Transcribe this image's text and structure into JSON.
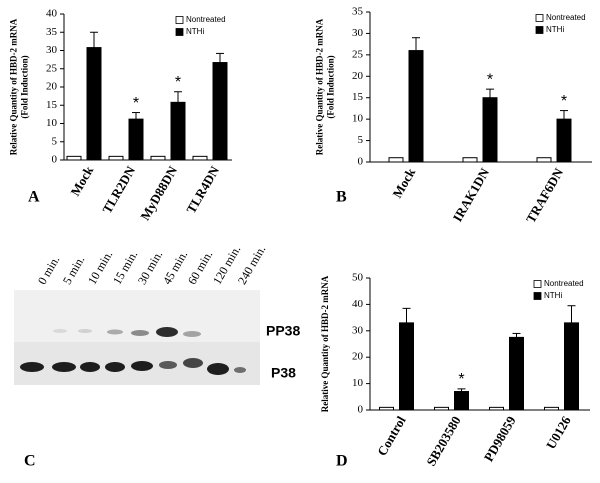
{
  "chart_data": [
    {
      "type": "bar",
      "panel": "A",
      "ylabel": [
        "Relative Quantity of HBD-2 mRNA",
        "(Fold Induction)"
      ],
      "categories": [
        "Mock",
        "TLR2DN",
        "MyD88DN",
        "TLR4DN"
      ],
      "series": [
        {
          "name": "Nontreated",
          "color": "#ffffff",
          "values": [
            1,
            1,
            1,
            1
          ]
        },
        {
          "name": "NTHi",
          "color": "#000000",
          "values": [
            30.8,
            11.2,
            15.8,
            26.7
          ],
          "errors": [
            4.2,
            1.8,
            2.9,
            2.5
          ]
        }
      ],
      "significance": [
        null,
        "*",
        "*",
        null
      ],
      "ylim": [
        0,
        40
      ],
      "yticks": [
        0,
        5,
        10,
        15,
        20,
        25,
        30,
        35,
        40
      ],
      "grid": false
    },
    {
      "type": "bar",
      "panel": "B",
      "ylabel": [
        "Relative Quantity of HBD-2 mRNA",
        "(Fold Induction)"
      ],
      "categories": [
        "Mock",
        "IRAK1DN",
        "TRAF6DN"
      ],
      "series": [
        {
          "name": "Nontreated",
          "color": "#ffffff",
          "values": [
            1,
            1,
            1
          ]
        },
        {
          "name": "NTHi",
          "color": "#000000",
          "values": [
            26,
            15,
            10
          ],
          "errors": [
            3,
            2,
            2
          ]
        }
      ],
      "significance": [
        null,
        "*",
        "*"
      ],
      "ylim": [
        0,
        35
      ],
      "yticks": [
        0,
        5,
        10,
        15,
        20,
        25,
        30,
        35
      ],
      "grid": false
    },
    {
      "type": "bar",
      "panel": "D",
      "ylabel": [
        "Relative Quantity of HBD-2 mRNA"
      ],
      "categories": [
        "Control",
        "SB203580",
        "PD98059",
        "U0126"
      ],
      "series": [
        {
          "name": "Nontreated",
          "color": "#ffffff",
          "values": [
            1,
            1,
            1,
            1
          ]
        },
        {
          "name": "NTHi",
          "color": "#000000",
          "values": [
            33,
            7,
            27.5,
            33
          ],
          "errors": [
            5.5,
            1,
            1.5,
            6.5
          ]
        }
      ],
      "significance": [
        null,
        "*",
        null,
        null
      ],
      "ylim": [
        0,
        50
      ],
      "yticks": [
        0,
        10,
        20,
        30,
        40,
        50
      ],
      "grid": false
    }
  ],
  "blot": {
    "panel": "C",
    "lanes": [
      "0 min.",
      "5 min.",
      "10 min.",
      "15 min.",
      "30 min.",
      "45 min.",
      "60 min.",
      "120 min.",
      "240 min."
    ],
    "bands": [
      "PP38",
      "P38"
    ]
  }
}
